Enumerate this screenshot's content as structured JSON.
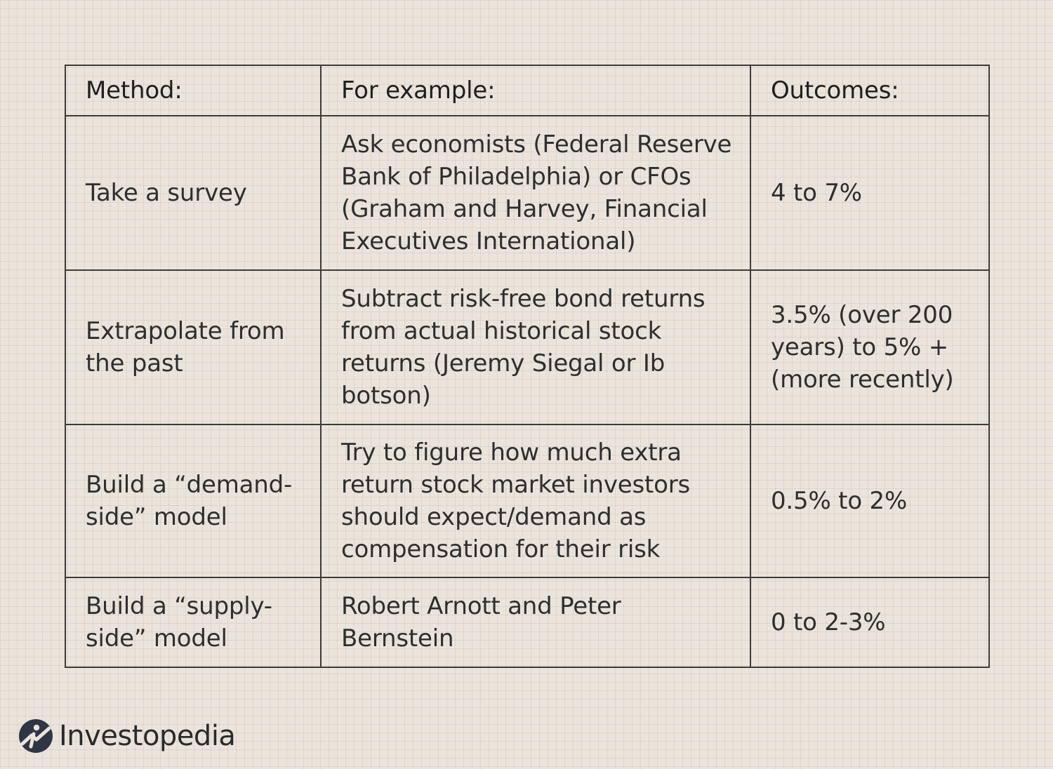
{
  "table": {
    "headers": [
      "Method:",
      "For example:",
      "Outcomes:"
    ],
    "rows": [
      {
        "method": "Take a survey",
        "example": "Ask economists (Federal Reserve Bank of Philadelphia) or CFOs (Graham and Harvey, Financial Executives International)",
        "outcome": "4 to 7%"
      },
      {
        "method": "Extrapolate from the past",
        "example": "Subtract risk-free bond returns from actual historical stock returns (Jeremy Siegal or Ib botson)",
        "outcome": "3.5% (over 200 years) to 5% + (more recently)"
      },
      {
        "method": "Build a “demand-side” model",
        "example": "Try to figure how much extra return stock market investors should expect/demand as compensation for their risk",
        "outcome": "0.5% to 2%"
      },
      {
        "method": "Build a “supply-side” model",
        "example": "Robert Arnott and Peter Bernstein",
        "outcome": "0 to 2-3%"
      }
    ]
  },
  "logo": {
    "wordmark": "Investopedia",
    "icon": "investopedia-logo-icon",
    "color": "#2f3542"
  },
  "colors": {
    "background": "#ebe4dc",
    "border": "#3a3a3a",
    "text": "#2e2e2e"
  }
}
